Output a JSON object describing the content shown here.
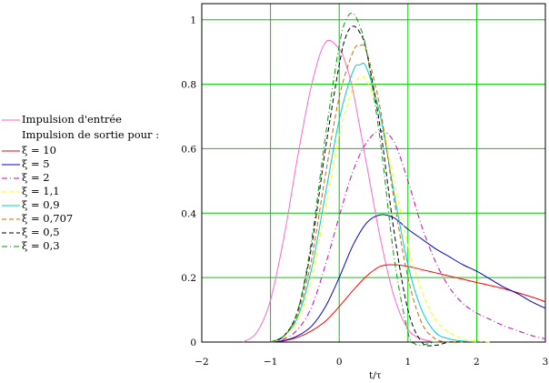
{
  "chart_data": {
    "type": "line",
    "xlabel": "t/τ",
    "ylabel": "",
    "xlim": [
      -2,
      3
    ],
    "ylim": [
      0,
      1.05
    ],
    "x_ticks": [
      "−2",
      "−1",
      "0",
      "1",
      "2",
      "3"
    ],
    "y_ticks": [
      "0",
      "0.2",
      "0.4",
      "0.6",
      "0.8",
      "1"
    ],
    "grid": true,
    "legend_position": "left",
    "legend_heading": "Impulsion de sortie pour :",
    "series": [
      {
        "name": "Impulsion d'entrée",
        "color": "#ff66cc",
        "dash": "solid",
        "x": [
          -1.4,
          -1.2,
          -1.0,
          -0.8,
          -0.6,
          -0.4,
          -0.2,
          0.0,
          0.1,
          0.2,
          0.4,
          0.6,
          0.8,
          1.0,
          1.2,
          1.4
        ],
        "y": [
          0.0,
          0.03,
          0.13,
          0.33,
          0.58,
          0.8,
          0.93,
          0.91,
          0.86,
          0.78,
          0.55,
          0.32,
          0.14,
          0.04,
          0.01,
          0.0
        ]
      },
      {
        "name": "ξ = 10",
        "color": "#ff0000",
        "dash": "solid",
        "x": [
          -1.0,
          -0.8,
          -0.6,
          -0.4,
          -0.2,
          0.0,
          0.2,
          0.4,
          0.6,
          0.8,
          1.0,
          1.2,
          1.4,
          1.6,
          1.8,
          2.0,
          2.4,
          2.8,
          3.0
        ],
        "y": [
          0.0,
          0.004,
          0.015,
          0.035,
          0.065,
          0.11,
          0.16,
          0.205,
          0.235,
          0.24,
          0.235,
          0.225,
          0.215,
          0.205,
          0.195,
          0.185,
          0.165,
          0.14,
          0.125
        ]
      },
      {
        "name": "ξ = 5",
        "color": "#0000cc",
        "dash": "solid",
        "x": [
          -1.0,
          -0.8,
          -0.6,
          -0.4,
          -0.2,
          0.0,
          0.2,
          0.4,
          0.6,
          0.8,
          1.0,
          1.2,
          1.4,
          1.6,
          1.8,
          2.0,
          2.2,
          2.4,
          2.6,
          2.8,
          3.0
        ],
        "y": [
          0.0,
          0.005,
          0.02,
          0.05,
          0.11,
          0.2,
          0.3,
          0.37,
          0.395,
          0.385,
          0.35,
          0.32,
          0.29,
          0.265,
          0.24,
          0.22,
          0.195,
          0.17,
          0.15,
          0.125,
          0.105
        ]
      },
      {
        "name": "ξ = 2",
        "color": "#cc00cc",
        "dash": "dashdot",
        "x": [
          -1.0,
          -0.8,
          -0.6,
          -0.4,
          -0.2,
          0.0,
          0.2,
          0.4,
          0.6,
          0.8,
          1.0,
          1.2,
          1.4,
          1.6,
          1.8,
          2.0,
          2.2,
          2.4,
          2.6,
          2.8,
          3.0
        ],
        "y": [
          0.0,
          0.01,
          0.04,
          0.11,
          0.24,
          0.39,
          0.53,
          0.62,
          0.655,
          0.62,
          0.5,
          0.36,
          0.25,
          0.17,
          0.12,
          0.09,
          0.07,
          0.05,
          0.035,
          0.02,
          0.01
        ]
      },
      {
        "name": "ξ = 1,1",
        "color": "#ffff00",
        "dash": "dashed",
        "x": [
          -1.0,
          -0.8,
          -0.6,
          -0.4,
          -0.2,
          0.0,
          0.2,
          0.3,
          0.4,
          0.6,
          0.8,
          1.0,
          1.2,
          1.4,
          1.6,
          1.8,
          2.0,
          2.2
        ],
        "y": [
          0.0,
          0.015,
          0.07,
          0.2,
          0.42,
          0.64,
          0.79,
          0.82,
          0.81,
          0.7,
          0.5,
          0.3,
          0.16,
          0.07,
          0.03,
          0.01,
          0.003,
          0.0
        ]
      },
      {
        "name": "ξ = 0,9",
        "color": "#00cccc",
        "dash": "solid",
        "x": [
          -1.0,
          -0.8,
          -0.6,
          -0.4,
          -0.2,
          0.0,
          0.2,
          0.3,
          0.4,
          0.6,
          0.8,
          1.0,
          1.2,
          1.4,
          1.6,
          1.8,
          2.0
        ],
        "y": [
          0.0,
          0.02,
          0.08,
          0.23,
          0.46,
          0.69,
          0.84,
          0.86,
          0.85,
          0.7,
          0.46,
          0.24,
          0.1,
          0.03,
          0.01,
          0.003,
          0.0
        ]
      },
      {
        "name": "ξ = 0,707",
        "color": "#cc6600",
        "dash": "dashed",
        "x": [
          -1.0,
          -0.8,
          -0.6,
          -0.4,
          -0.2,
          0.0,
          0.2,
          0.3,
          0.4,
          0.6,
          0.8,
          1.0,
          1.2,
          1.4,
          1.6,
          1.8
        ],
        "y": [
          0.0,
          0.02,
          0.09,
          0.26,
          0.52,
          0.76,
          0.9,
          0.92,
          0.9,
          0.72,
          0.44,
          0.2,
          0.06,
          0.01,
          0.0,
          0.0
        ]
      },
      {
        "name": "ξ = 0,5",
        "color": "#000000",
        "dash": "dashed",
        "x": [
          -1.0,
          -0.8,
          -0.6,
          -0.4,
          -0.2,
          0.0,
          0.1,
          0.2,
          0.3,
          0.4,
          0.6,
          0.8,
          1.0,
          1.2,
          1.4,
          1.6,
          1.8
        ],
        "y": [
          0.0,
          0.02,
          0.1,
          0.3,
          0.6,
          0.86,
          0.95,
          0.98,
          0.96,
          0.9,
          0.66,
          0.34,
          0.1,
          0.0,
          -0.01,
          0.0,
          0.0
        ]
      },
      {
        "name": "ξ = 0,3",
        "color": "#009900",
        "dash": "dashdot",
        "x": [
          -1.0,
          -0.8,
          -0.6,
          -0.4,
          -0.2,
          0.0,
          0.1,
          0.2,
          0.3,
          0.4,
          0.6,
          0.8,
          1.0,
          1.1,
          1.2,
          1.4,
          1.6
        ],
        "y": [
          0.0,
          0.02,
          0.1,
          0.32,
          0.64,
          0.92,
          1.0,
          1.02,
          0.98,
          0.9,
          0.62,
          0.26,
          0.03,
          -0.005,
          -0.01,
          0.0,
          0.0
        ]
      }
    ]
  }
}
